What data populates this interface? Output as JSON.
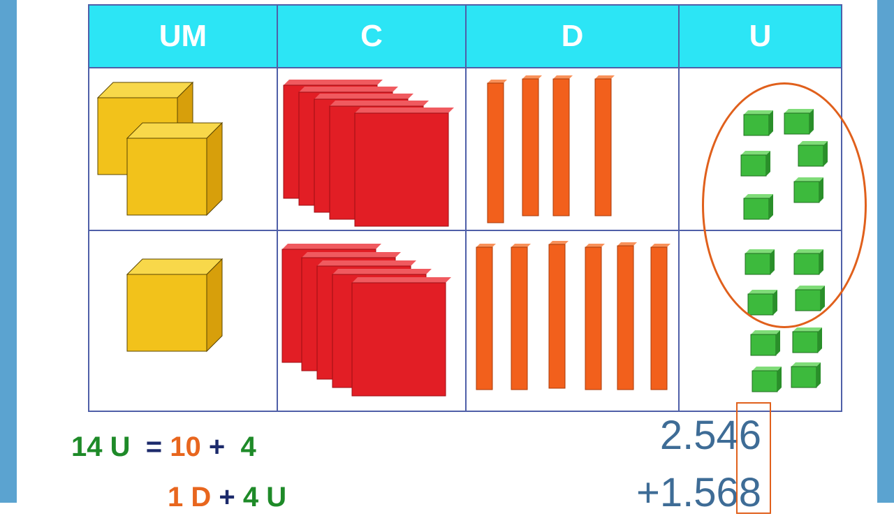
{
  "table": {
    "headers": [
      "UM",
      "C",
      "D",
      "U"
    ],
    "rows": [
      {
        "UM": 2,
        "C": 5,
        "D": 4,
        "U": 6
      },
      {
        "UM": 1,
        "C": 5,
        "D": 6,
        "U": 8
      }
    ]
  },
  "equation": {
    "left": "14 U",
    "equals": "=",
    "tens": "10",
    "plus": "+",
    "ones": "4",
    "line2": {
      "tens": "1 D",
      "plus": "+",
      "ones": "4 U"
    }
  },
  "addition": {
    "first": "2.546",
    "second": "+1.568"
  },
  "colors": {
    "header_bg": "#2ce5f5",
    "border": "#4f5fa8",
    "thousand_cube": "#f2c21b",
    "hundred_flat": "#e21e25",
    "ten_rod": "#f2601c",
    "unit_cube": "#3dba3d",
    "highlight": "#e0601c",
    "side_bar": "#5ba3d0"
  }
}
